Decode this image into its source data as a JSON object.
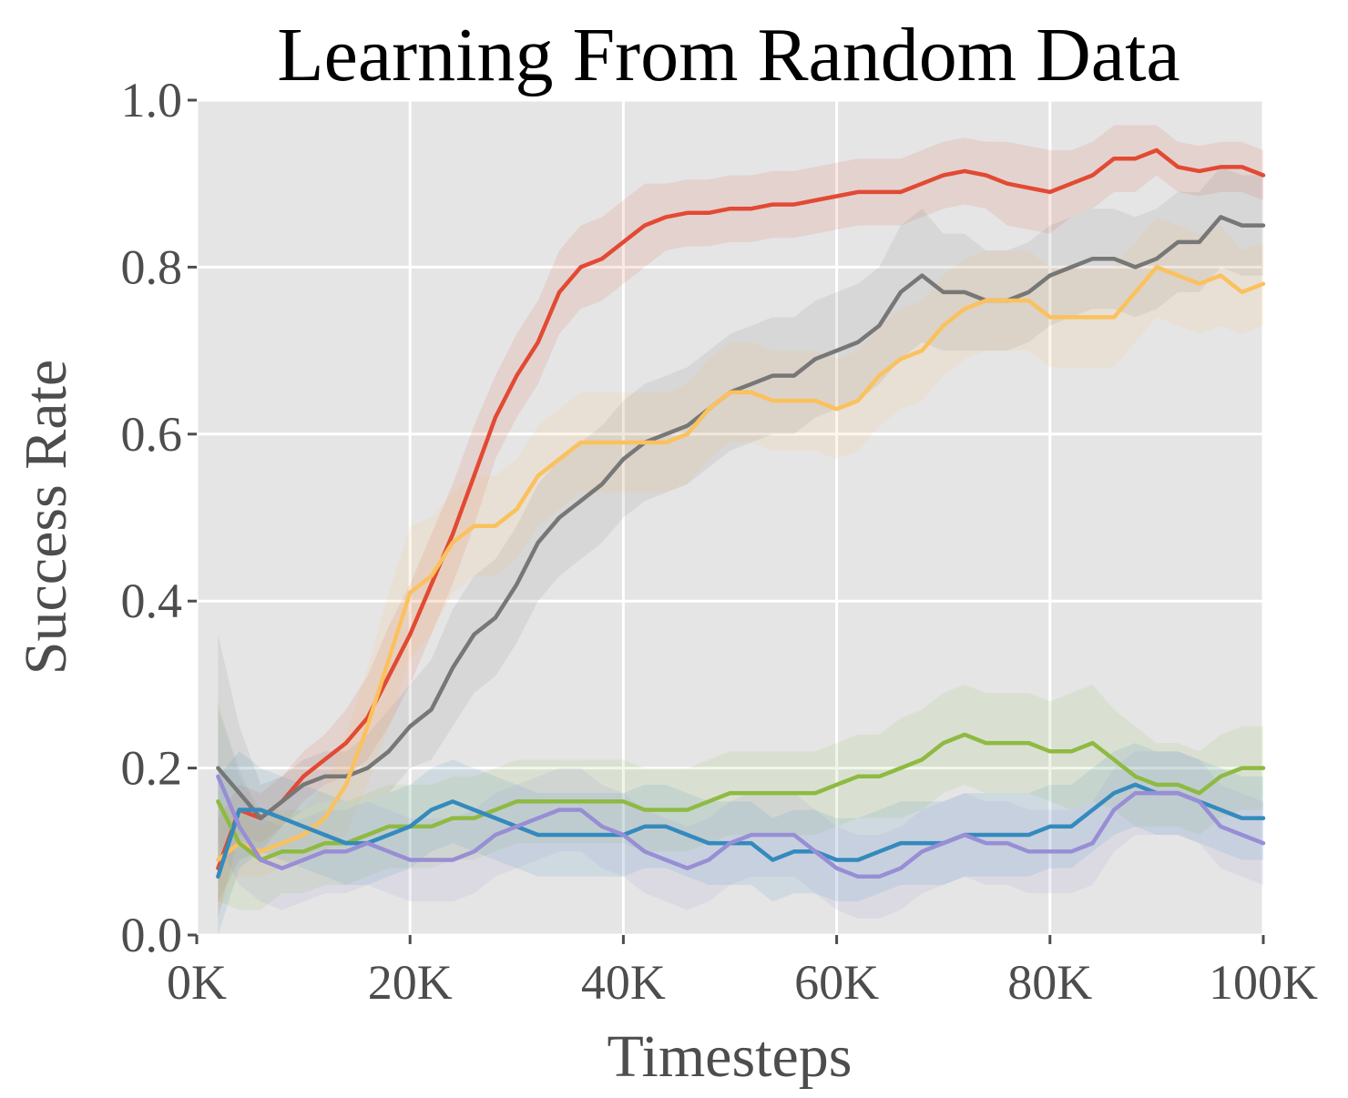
{
  "chart_data": {
    "type": "line",
    "title": "Learning From Random Data",
    "xlabel": "Timesteps",
    "ylabel": "Success Rate",
    "xlim": [
      0,
      100000
    ],
    "ylim": [
      0,
      1.0
    ],
    "x_ticks": [
      {
        "value": 0,
        "label": "0K"
      },
      {
        "value": 20000,
        "label": "20K"
      },
      {
        "value": 40000,
        "label": "40K"
      },
      {
        "value": 60000,
        "label": "60K"
      },
      {
        "value": 80000,
        "label": "80K"
      },
      {
        "value": 100000,
        "label": "100K"
      }
    ],
    "y_ticks": [
      {
        "value": 0.0,
        "label": "0.0"
      },
      {
        "value": 0.2,
        "label": "0.2"
      },
      {
        "value": 0.4,
        "label": "0.4"
      },
      {
        "value": 0.6,
        "label": "0.6"
      },
      {
        "value": 0.8,
        "label": "0.8"
      },
      {
        "value": 1.0,
        "label": "1.0"
      }
    ],
    "grid": true,
    "background": "#e5e5e5",
    "x": [
      2000,
      4000,
      6000,
      8000,
      10000,
      12000,
      14000,
      16000,
      18000,
      20000,
      22000,
      24000,
      26000,
      28000,
      30000,
      32000,
      34000,
      36000,
      38000,
      40000,
      42000,
      44000,
      46000,
      48000,
      50000,
      52000,
      54000,
      56000,
      58000,
      60000,
      62000,
      64000,
      66000,
      68000,
      70000,
      72000,
      74000,
      76000,
      78000,
      80000,
      82000,
      84000,
      86000,
      88000,
      90000,
      92000,
      94000,
      96000,
      98000,
      100000
    ],
    "series": [
      {
        "color": "#e24a33",
        "values": [
          0.08,
          0.15,
          0.14,
          0.16,
          0.19,
          0.21,
          0.23,
          0.26,
          0.31,
          0.36,
          0.42,
          0.48,
          0.55,
          0.62,
          0.67,
          0.71,
          0.77,
          0.8,
          0.81,
          0.83,
          0.85,
          0.86,
          0.865,
          0.865,
          0.87,
          0.87,
          0.875,
          0.875,
          0.88,
          0.885,
          0.89,
          0.89,
          0.89,
          0.9,
          0.91,
          0.915,
          0.91,
          0.9,
          0.895,
          0.89,
          0.9,
          0.91,
          0.93,
          0.93,
          0.94,
          0.92,
          0.915,
          0.92,
          0.92,
          0.91
        ],
        "band": [
          0.06,
          0.03,
          0.03,
          0.03,
          0.03,
          0.03,
          0.04,
          0.05,
          0.06,
          0.06,
          0.06,
          0.06,
          0.06,
          0.05,
          0.05,
          0.05,
          0.05,
          0.05,
          0.05,
          0.05,
          0.05,
          0.04,
          0.04,
          0.04,
          0.04,
          0.04,
          0.04,
          0.04,
          0.04,
          0.04,
          0.04,
          0.04,
          0.04,
          0.04,
          0.04,
          0.04,
          0.04,
          0.05,
          0.05,
          0.05,
          0.04,
          0.04,
          0.04,
          0.04,
          0.03,
          0.03,
          0.03,
          0.03,
          0.03,
          0.03
        ]
      },
      {
        "color": "#777777",
        "values": [
          0.2,
          0.17,
          0.14,
          0.16,
          0.18,
          0.19,
          0.19,
          0.2,
          0.22,
          0.25,
          0.27,
          0.32,
          0.36,
          0.38,
          0.42,
          0.47,
          0.5,
          0.52,
          0.54,
          0.57,
          0.59,
          0.6,
          0.61,
          0.63,
          0.65,
          0.66,
          0.67,
          0.67,
          0.69,
          0.7,
          0.71,
          0.73,
          0.77,
          0.79,
          0.77,
          0.77,
          0.76,
          0.76,
          0.77,
          0.79,
          0.8,
          0.81,
          0.81,
          0.8,
          0.81,
          0.83,
          0.83,
          0.86,
          0.85,
          0.85
        ],
        "band": [
          0.16,
          0.08,
          0.04,
          0.03,
          0.03,
          0.03,
          0.03,
          0.04,
          0.05,
          0.05,
          0.06,
          0.07,
          0.07,
          0.07,
          0.07,
          0.07,
          0.07,
          0.07,
          0.07,
          0.07,
          0.07,
          0.07,
          0.07,
          0.07,
          0.07,
          0.07,
          0.07,
          0.07,
          0.07,
          0.07,
          0.07,
          0.07,
          0.08,
          0.08,
          0.07,
          0.07,
          0.06,
          0.06,
          0.06,
          0.06,
          0.06,
          0.06,
          0.06,
          0.06,
          0.06,
          0.06,
          0.06,
          0.06,
          0.06,
          0.06
        ]
      },
      {
        "color": "#fbc15e",
        "values": [
          0.09,
          0.11,
          0.1,
          0.11,
          0.12,
          0.14,
          0.18,
          0.25,
          0.33,
          0.41,
          0.43,
          0.47,
          0.49,
          0.49,
          0.51,
          0.55,
          0.57,
          0.59,
          0.59,
          0.59,
          0.59,
          0.59,
          0.6,
          0.63,
          0.65,
          0.65,
          0.64,
          0.64,
          0.64,
          0.63,
          0.64,
          0.67,
          0.69,
          0.7,
          0.73,
          0.75,
          0.76,
          0.76,
          0.76,
          0.74,
          0.74,
          0.74,
          0.74,
          0.77,
          0.8,
          0.79,
          0.78,
          0.79,
          0.77,
          0.78
        ],
        "band": [
          0.06,
          0.04,
          0.03,
          0.03,
          0.03,
          0.04,
          0.06,
          0.07,
          0.08,
          0.08,
          0.07,
          0.06,
          0.06,
          0.06,
          0.06,
          0.06,
          0.06,
          0.06,
          0.06,
          0.06,
          0.06,
          0.06,
          0.06,
          0.06,
          0.06,
          0.06,
          0.06,
          0.06,
          0.06,
          0.06,
          0.06,
          0.06,
          0.06,
          0.06,
          0.06,
          0.06,
          0.06,
          0.06,
          0.06,
          0.06,
          0.06,
          0.06,
          0.06,
          0.06,
          0.06,
          0.06,
          0.06,
          0.06,
          0.05,
          0.05
        ]
      },
      {
        "color": "#8eba42",
        "values": [
          0.16,
          0.11,
          0.09,
          0.1,
          0.1,
          0.11,
          0.11,
          0.12,
          0.13,
          0.13,
          0.13,
          0.14,
          0.14,
          0.15,
          0.16,
          0.16,
          0.16,
          0.16,
          0.16,
          0.16,
          0.15,
          0.15,
          0.15,
          0.16,
          0.17,
          0.17,
          0.17,
          0.17,
          0.17,
          0.18,
          0.19,
          0.19,
          0.2,
          0.21,
          0.23,
          0.24,
          0.23,
          0.23,
          0.23,
          0.22,
          0.22,
          0.23,
          0.21,
          0.19,
          0.18,
          0.18,
          0.17,
          0.19,
          0.2,
          0.2
        ],
        "band": [
          0.12,
          0.08,
          0.06,
          0.05,
          0.05,
          0.05,
          0.05,
          0.05,
          0.05,
          0.05,
          0.05,
          0.05,
          0.05,
          0.05,
          0.05,
          0.05,
          0.05,
          0.05,
          0.05,
          0.05,
          0.05,
          0.05,
          0.05,
          0.05,
          0.05,
          0.05,
          0.05,
          0.05,
          0.05,
          0.05,
          0.05,
          0.05,
          0.06,
          0.06,
          0.06,
          0.06,
          0.06,
          0.06,
          0.06,
          0.06,
          0.07,
          0.07,
          0.06,
          0.06,
          0.05,
          0.05,
          0.05,
          0.05,
          0.05,
          0.05
        ]
      },
      {
        "color": "#348abd",
        "values": [
          0.07,
          0.15,
          0.15,
          0.14,
          0.13,
          0.12,
          0.11,
          0.11,
          0.12,
          0.13,
          0.15,
          0.16,
          0.15,
          0.14,
          0.13,
          0.12,
          0.12,
          0.12,
          0.12,
          0.12,
          0.13,
          0.13,
          0.12,
          0.11,
          0.11,
          0.11,
          0.09,
          0.1,
          0.1,
          0.09,
          0.09,
          0.1,
          0.11,
          0.11,
          0.11,
          0.12,
          0.12,
          0.12,
          0.12,
          0.13,
          0.13,
          0.15,
          0.17,
          0.18,
          0.17,
          0.17,
          0.16,
          0.15,
          0.14,
          0.14
        ],
        "band": [
          0.12,
          0.07,
          0.05,
          0.05,
          0.05,
          0.05,
          0.05,
          0.05,
          0.05,
          0.05,
          0.05,
          0.05,
          0.05,
          0.05,
          0.05,
          0.05,
          0.05,
          0.05,
          0.05,
          0.05,
          0.05,
          0.05,
          0.05,
          0.05,
          0.05,
          0.05,
          0.05,
          0.05,
          0.05,
          0.05,
          0.05,
          0.05,
          0.05,
          0.05,
          0.05,
          0.05,
          0.05,
          0.05,
          0.05,
          0.05,
          0.05,
          0.05,
          0.05,
          0.05,
          0.05,
          0.05,
          0.05,
          0.05,
          0.05,
          0.05
        ]
      },
      {
        "color": "#988ed5",
        "values": [
          0.19,
          0.13,
          0.09,
          0.08,
          0.09,
          0.1,
          0.1,
          0.11,
          0.1,
          0.09,
          0.09,
          0.09,
          0.1,
          0.12,
          0.13,
          0.14,
          0.15,
          0.15,
          0.13,
          0.12,
          0.1,
          0.09,
          0.08,
          0.09,
          0.11,
          0.12,
          0.12,
          0.12,
          0.1,
          0.08,
          0.07,
          0.07,
          0.08,
          0.1,
          0.11,
          0.12,
          0.11,
          0.11,
          0.1,
          0.1,
          0.1,
          0.11,
          0.15,
          0.17,
          0.17,
          0.17,
          0.16,
          0.13,
          0.12,
          0.11
        ],
        "band": [
          0.08,
          0.07,
          0.05,
          0.05,
          0.05,
          0.05,
          0.05,
          0.05,
          0.05,
          0.05,
          0.05,
          0.05,
          0.05,
          0.05,
          0.05,
          0.05,
          0.05,
          0.05,
          0.05,
          0.05,
          0.05,
          0.05,
          0.05,
          0.05,
          0.05,
          0.05,
          0.05,
          0.05,
          0.05,
          0.05,
          0.05,
          0.05,
          0.05,
          0.05,
          0.05,
          0.05,
          0.05,
          0.05,
          0.05,
          0.05,
          0.05,
          0.05,
          0.05,
          0.05,
          0.05,
          0.05,
          0.05,
          0.05,
          0.05,
          0.05
        ]
      }
    ]
  }
}
